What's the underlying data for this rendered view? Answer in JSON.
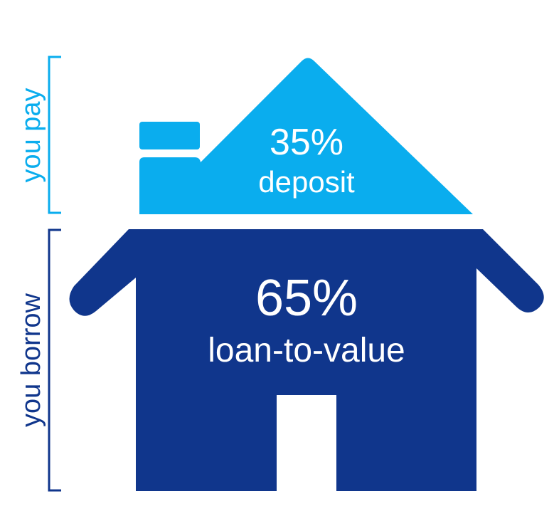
{
  "colors": {
    "deposit": "#0aadee",
    "loan": "#10368c",
    "background": "#ffffff"
  },
  "deposit": {
    "percent": "35%",
    "label": "deposit",
    "side_label": "you pay",
    "value": 35
  },
  "loan": {
    "percent": "65%",
    "label": "loan-to-value",
    "side_label": "you borrow",
    "value": 65
  }
}
